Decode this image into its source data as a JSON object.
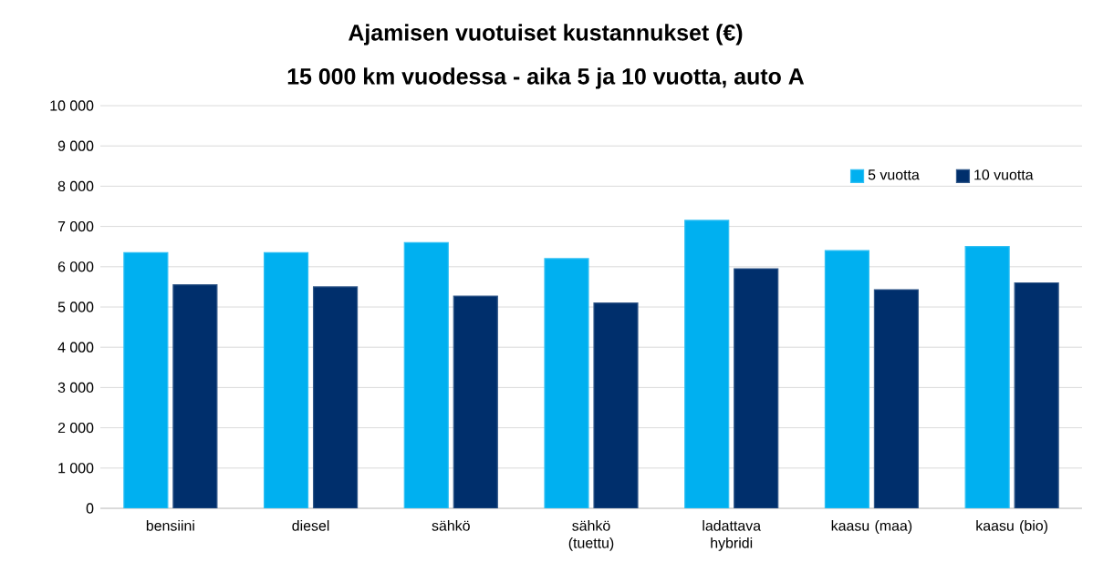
{
  "chart_data": {
    "type": "bar",
    "title": "Ajamisen vuotuiset kustannukset (€)",
    "subtitle": "15 000 km vuodessa - aika 5 ja 10 vuotta, auto A",
    "categories": [
      "bensiini",
      "diesel",
      "sähkö",
      "sähkö (tuettu)",
      "ladattava hybridi",
      "kaasu (maa)",
      "kaasu (bio)"
    ],
    "series": [
      {
        "name": "5 vuotta",
        "color": "#00b0f0",
        "values": [
          6350,
          6350,
          6600,
          6200,
          7150,
          6400,
          6500
        ]
      },
      {
        "name": "10 vuotta",
        "color": "#002f6c",
        "values": [
          5550,
          5500,
          5270,
          5100,
          5950,
          5430,
          5600
        ]
      }
    ],
    "ylim": [
      0,
      10000
    ],
    "yticks": [
      0,
      {
        "value": 1000,
        "label": "1 000"
      },
      {
        "value": 2000,
        "label": "2 000"
      },
      {
        "value": 3000,
        "label": "3 000"
      },
      {
        "value": 4000,
        "label": "4 000"
      },
      {
        "value": 5000,
        "label": "5 000"
      },
      {
        "value": 6000,
        "label": "6 000"
      },
      {
        "value": 7000,
        "label": "7 000"
      },
      {
        "value": 8000,
        "label": "8 000"
      },
      {
        "value": 9000,
        "label": "9 000"
      },
      {
        "value": 10000,
        "label": "10 000"
      }
    ],
    "grid": "y",
    "legend": "top right"
  }
}
